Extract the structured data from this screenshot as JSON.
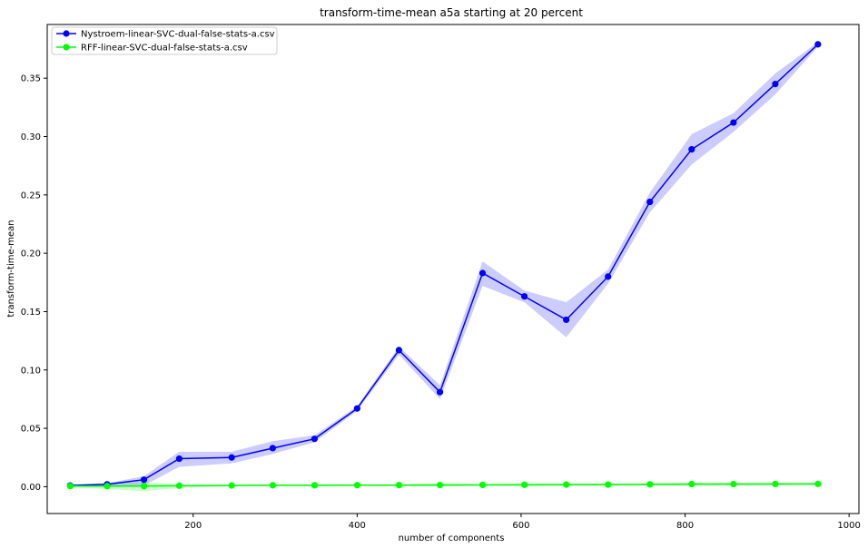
{
  "chart_data": {
    "type": "line",
    "title": "transform-time-mean a5a starting at 20 percent",
    "xlabel": "number of components",
    "ylabel": "transform-time-mean",
    "xlim": [
      22,
      1012
    ],
    "ylim": [
      -0.023,
      0.396
    ],
    "xticks": [
      200,
      400,
      600,
      800,
      1000
    ],
    "yticks": [
      0.0,
      0.05,
      0.1,
      0.15,
      0.2,
      0.25,
      0.3,
      0.35
    ],
    "ytick_labels": [
      "0.00",
      "0.05",
      "0.10",
      "0.15",
      "0.20",
      "0.25",
      "0.30",
      "0.35"
    ],
    "grid": false,
    "legend_position": "top-left",
    "series": [
      {
        "name": "Nystroem-linear-SVC-dual-false-stats-a.csv",
        "color": "#0000ff",
        "x": [
          50,
          95,
          140,
          183,
          247,
          297,
          348,
          400,
          451,
          501,
          553,
          604,
          655,
          706,
          757,
          808,
          859,
          910,
          962
        ],
        "y": [
          0.001,
          0.002,
          0.006,
          0.024,
          0.025,
          0.033,
          0.041,
          0.067,
          0.117,
          0.081,
          0.183,
          0.163,
          0.143,
          0.18,
          0.244,
          0.289,
          0.312,
          0.345,
          0.379
        ],
        "lower": [
          0.0,
          0.0,
          0.001,
          0.017,
          0.02,
          0.028,
          0.038,
          0.065,
          0.113,
          0.075,
          0.172,
          0.158,
          0.128,
          0.174,
          0.235,
          0.276,
          0.304,
          0.336,
          0.377
        ],
        "upper": [
          0.002,
          0.003,
          0.009,
          0.03,
          0.03,
          0.039,
          0.044,
          0.069,
          0.12,
          0.087,
          0.193,
          0.168,
          0.158,
          0.186,
          0.252,
          0.302,
          0.32,
          0.354,
          0.381
        ]
      },
      {
        "name": "RFF-linear-SVC-dual-false-stats-a.csv",
        "color": "#00ff00",
        "x": [
          50,
          95,
          140,
          183,
          247,
          297,
          348,
          400,
          451,
          501,
          553,
          604,
          655,
          706,
          757,
          808,
          859,
          910,
          962
        ],
        "y": [
          0.0005,
          0.0005,
          0.0005,
          0.0008,
          0.001,
          0.0012,
          0.0012,
          0.0013,
          0.0013,
          0.0014,
          0.0015,
          0.0016,
          0.0018,
          0.0018,
          0.002,
          0.0022,
          0.0022,
          0.0023,
          0.0024
        ],
        "lower": [
          -0.0005,
          -0.002,
          -0.004,
          -0.001,
          0.0003,
          0.0005,
          0.0004,
          0.0006,
          0.0005,
          0.0002,
          0.0008,
          0.0005,
          0.0008,
          0.001,
          0.001,
          0.0008,
          0.0011,
          0.0012,
          0.0015
        ],
        "upper": [
          0.0015,
          0.0025,
          0.004,
          0.002,
          0.0018,
          0.002,
          0.002,
          0.002,
          0.0021,
          0.003,
          0.0022,
          0.003,
          0.0028,
          0.0027,
          0.003,
          0.0036,
          0.0034,
          0.0035,
          0.0033
        ]
      }
    ]
  }
}
